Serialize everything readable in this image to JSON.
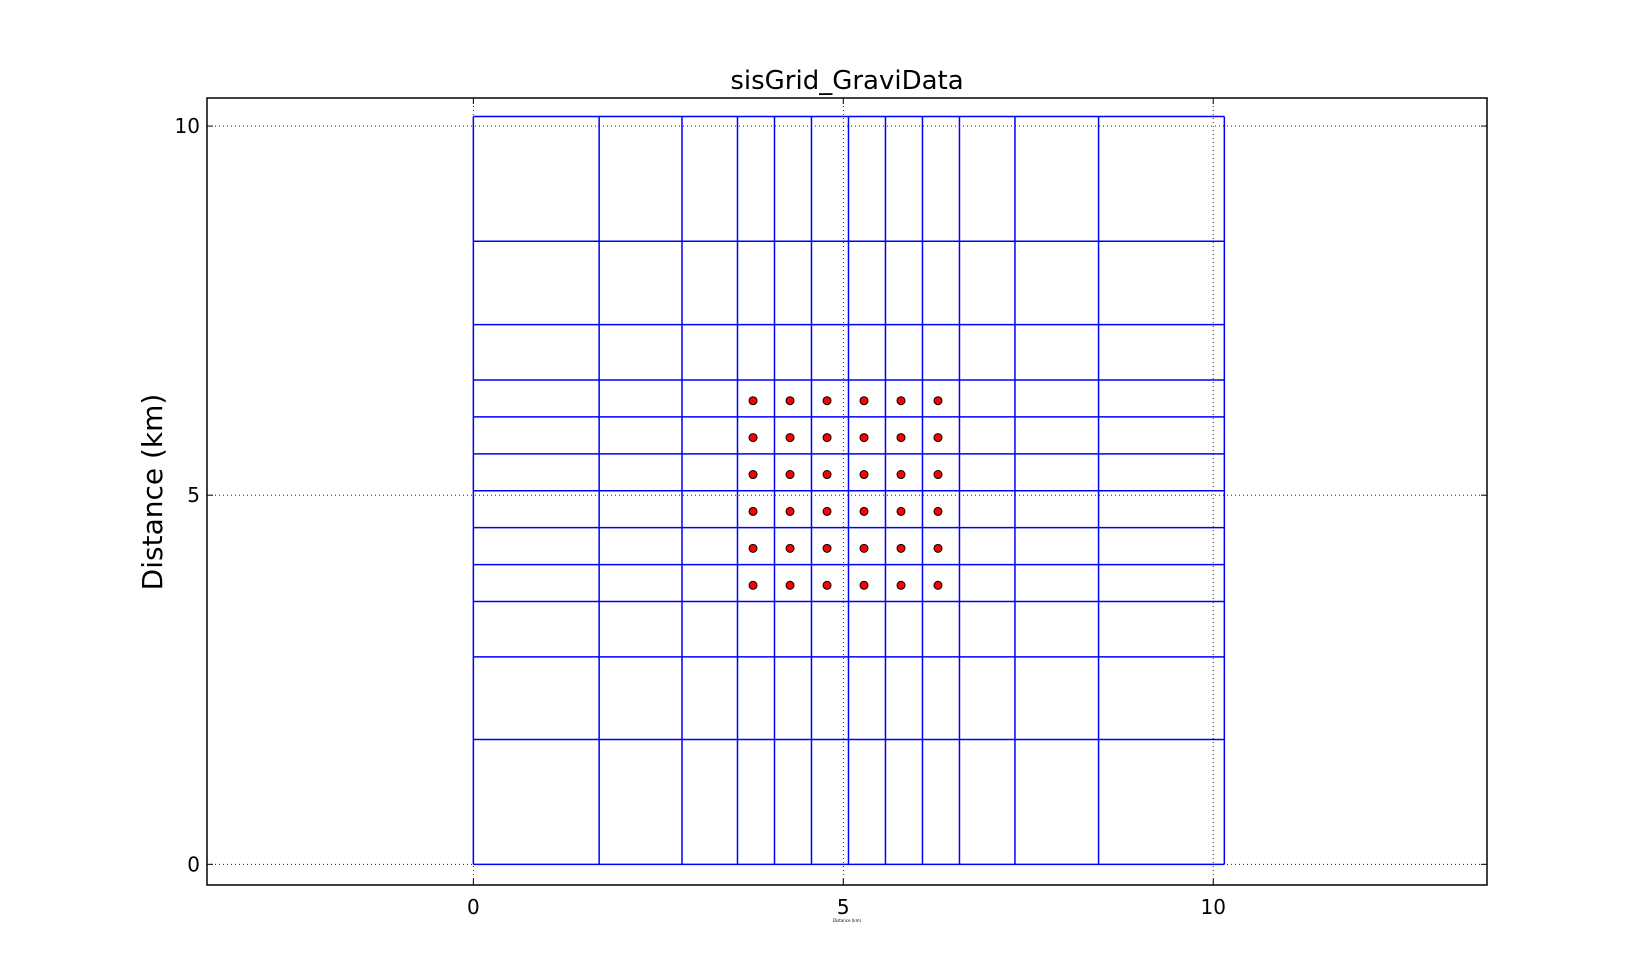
{
  "chart_data": {
    "type": "scatter",
    "title": "sisGrid_GraviData",
    "xlabel": "Distance (km)",
    "ylabel": "Distance (km)",
    "xlim": [
      -3.6,
      13.7
    ],
    "ylim": [
      -0.28,
      10.38
    ],
    "xticks": [
      0,
      5,
      10
    ],
    "yticks": [
      0,
      5,
      10
    ],
    "grid": true,
    "colors": {
      "grid_lines": "#0000ff",
      "points": "#ff0000",
      "point_edge": "#000000",
      "frame": "#000000"
    },
    "mesh": {
      "x_edges": [
        0,
        1.7,
        2.82,
        3.57,
        4.07,
        4.57,
        5.07,
        5.57,
        6.07,
        6.57,
        7.32,
        8.45,
        10.15
      ],
      "y_edges": [
        0,
        1.69,
        2.81,
        3.56,
        4.06,
        4.56,
        5.06,
        5.56,
        6.06,
        6.56,
        7.31,
        8.44,
        10.13
      ]
    },
    "series": [
      {
        "x": [
          3.78,
          4.28,
          4.78,
          5.28,
          5.78,
          6.28
        ],
        "y": [
          3.78,
          4.28,
          4.78,
          5.28,
          5.78,
          6.28
        ],
        "layout": "grid"
      }
    ]
  }
}
